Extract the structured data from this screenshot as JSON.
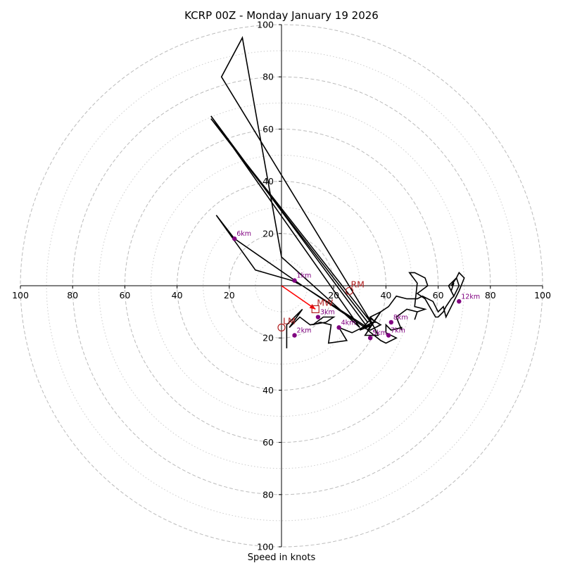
{
  "chart_data": {
    "type": "hodograph",
    "title": "KCRP 00Z - Monday January 19 2026",
    "xlabel": "Speed in knots",
    "xlim": [
      -100,
      100
    ],
    "ylim": [
      -100,
      100
    ],
    "x_tick_labels": [
      {
        "v": -100,
        "label": "100"
      },
      {
        "v": -80,
        "label": "80"
      },
      {
        "v": -60,
        "label": "60"
      },
      {
        "v": -40,
        "label": "40"
      },
      {
        "v": -20,
        "label": "20"
      },
      {
        "v": 20,
        "label": "20"
      },
      {
        "v": 40,
        "label": "40"
      },
      {
        "v": 60,
        "label": "60"
      },
      {
        "v": 80,
        "label": "80"
      },
      {
        "v": 100,
        "label": "100"
      }
    ],
    "y_tick_labels": [
      {
        "v": 100,
        "label": "100"
      },
      {
        "v": 80,
        "label": "80"
      },
      {
        "v": 60,
        "label": "60"
      },
      {
        "v": 40,
        "label": "40"
      },
      {
        "v": 20,
        "label": "20"
      },
      {
        "v": -20,
        "label": "20"
      },
      {
        "v": -40,
        "label": "40"
      },
      {
        "v": -60,
        "label": "60"
      },
      {
        "v": -80,
        "label": "80"
      },
      {
        "v": -100,
        "label": "100"
      }
    ],
    "rings_major": [
      20,
      40,
      60,
      80,
      100
    ],
    "rings_minor": [
      10,
      30,
      50,
      70,
      90
    ],
    "colors": {
      "trace": "#000000",
      "height": "#800080",
      "motion": "#b22222",
      "shear": "#ff0000",
      "grid": "#bbbbbb"
    },
    "hodograph_trace": [
      [
        2,
        -24
      ],
      [
        2,
        -15
      ],
      [
        8,
        -9
      ],
      [
        3,
        -16
      ],
      [
        7,
        -12
      ],
      [
        11,
        -15
      ],
      [
        17,
        -14
      ],
      [
        20,
        -12
      ],
      [
        16,
        -12
      ],
      [
        12,
        -15
      ],
      [
        15,
        -14
      ],
      [
        19,
        -15
      ],
      [
        18,
        -22
      ],
      [
        25,
        -21
      ],
      [
        22,
        -16
      ],
      [
        27,
        -18
      ],
      [
        31,
        -16
      ],
      [
        35,
        -15
      ],
      [
        30,
        -17
      ],
      [
        34,
        -13
      ],
      [
        37,
        -19
      ],
      [
        32,
        -19
      ],
      [
        38,
        -10
      ],
      [
        33,
        -17
      ],
      [
        38,
        -21
      ],
      [
        40,
        -22
      ],
      [
        44,
        -20
      ],
      [
        40,
        -18
      ],
      [
        40,
        -15
      ],
      [
        42,
        -17
      ],
      [
        46,
        -16
      ],
      [
        46,
        -17
      ],
      [
        44,
        -12
      ],
      [
        48,
        -9
      ],
      [
        52,
        -10
      ],
      [
        51,
        -13
      ],
      [
        52,
        -10
      ],
      [
        55,
        -9
      ],
      [
        51,
        -8
      ],
      [
        52,
        1
      ],
      [
        49,
        5
      ],
      [
        51,
        5
      ],
      [
        55,
        3
      ],
      [
        56,
        0
      ],
      [
        52,
        -3
      ],
      [
        55,
        -5
      ],
      [
        59,
        -12
      ],
      [
        60,
        -12
      ],
      [
        62,
        -10
      ],
      [
        63,
        -8
      ],
      [
        65,
        -5
      ],
      [
        66,
        -4
      ],
      [
        65,
        -2
      ],
      [
        64,
        0
      ],
      [
        65,
        1
      ],
      [
        66,
        2
      ],
      [
        67,
        3
      ],
      [
        68,
        0
      ],
      [
        66,
        -4
      ],
      [
        65,
        -2
      ],
      [
        66,
        1
      ],
      [
        65,
        0
      ],
      [
        67,
        3
      ],
      [
        68,
        5
      ],
      [
        70,
        3
      ],
      [
        68,
        -2
      ],
      [
        63,
        -12
      ],
      [
        62,
        -8
      ],
      [
        60,
        -10
      ],
      [
        58,
        -6
      ],
      [
        54,
        -4
      ],
      [
        52,
        -5
      ],
      [
        48,
        -5
      ],
      [
        44,
        -4
      ],
      [
        41,
        -8
      ],
      [
        38,
        -10
      ],
      [
        34,
        -12
      ],
      [
        36,
        -14
      ],
      [
        34,
        -14
      ],
      [
        33,
        -12
      ],
      [
        38,
        -15
      ],
      [
        34,
        -17
      ],
      [
        31,
        -16
      ],
      [
        35,
        -14
      ],
      [
        32,
        -16
      ],
      [
        8,
        0
      ],
      [
        4,
        2
      ],
      [
        -10,
        6
      ],
      [
        -25,
        27
      ],
      [
        -18,
        18
      ],
      [
        8,
        0
      ],
      [
        33,
        -16
      ],
      [
        -27,
        65
      ],
      [
        30,
        -16
      ],
      [
        0,
        11
      ],
      [
        -15,
        95
      ],
      [
        -23,
        80
      ],
      [
        35,
        -15
      ],
      [
        -27,
        64
      ],
      [
        33,
        -14
      ]
    ],
    "height_markers": [
      {
        "label": "1km",
        "u": 5,
        "v": 2
      },
      {
        "label": "2km",
        "u": 5,
        "v": -19
      },
      {
        "label": "3km",
        "u": 14,
        "v": -12
      },
      {
        "label": "4km",
        "u": 22,
        "v": -16
      },
      {
        "label": "5km",
        "u": 34,
        "v": -20
      },
      {
        "label": "6km",
        "u": -18,
        "v": 18
      },
      {
        "label": "7km",
        "u": 41,
        "v": -19
      },
      {
        "label": "8km",
        "u": 42,
        "v": -14
      },
      {
        "label": "12km",
        "u": 68,
        "v": -6
      }
    ],
    "storm_motion": [
      {
        "label": "RM",
        "u": 26,
        "v": -2,
        "marker": "circle"
      },
      {
        "label": "LM",
        "u": 0,
        "v": -16,
        "marker": "circle"
      },
      {
        "label": "MW",
        "u": 13,
        "v": -9,
        "marker": "square"
      }
    ],
    "shear_vector": {
      "from": [
        0,
        0
      ],
      "to": [
        13,
        -9
      ]
    }
  }
}
